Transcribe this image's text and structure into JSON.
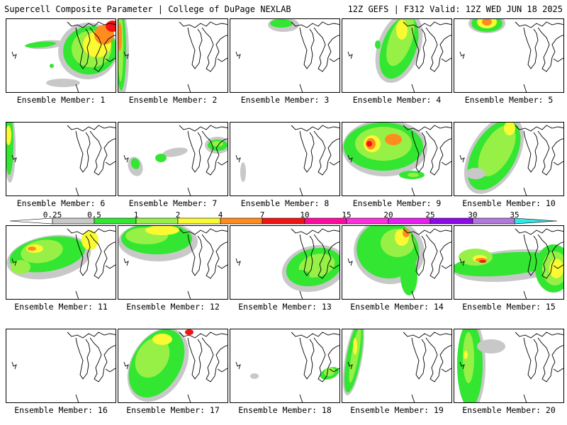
{
  "header": {
    "left": "Supercell Composite Parameter | College of DuPage NEXLAB",
    "right": "12Z GEFS | F312 Valid: 12Z WED JUN 18 2025"
  },
  "legend": {
    "labels": [
      "0.25",
      "0.5",
      "1",
      "2",
      "4",
      "7",
      "10",
      "15",
      "20",
      "25",
      "30",
      "35"
    ],
    "colors": [
      "#c8c8c8",
      "#32e632",
      "#96f046",
      "#fafa32",
      "#ff8c1e",
      "#f01414",
      "#ff0aa0",
      "#ff2ddc",
      "#e61ef0",
      "#8c0ae6",
      "#b478dc",
      "#32e6e6"
    ]
  },
  "panels": [
    {
      "label": "Ensemble Member: 1"
    },
    {
      "label": "Ensemble Member: 2"
    },
    {
      "label": "Ensemble Member: 3"
    },
    {
      "label": "Ensemble Member: 4"
    },
    {
      "label": "Ensemble Member: 5"
    },
    {
      "label": "Ensemble Member: 6"
    },
    {
      "label": "Ensemble Member: 7"
    },
    {
      "label": "Ensemble Member: 8"
    },
    {
      "label": "Ensemble Member: 9"
    },
    {
      "label": "Ensemble Member: 10"
    },
    {
      "label": "Ensemble Member: 11"
    },
    {
      "label": "Ensemble Member: 12"
    },
    {
      "label": "Ensemble Member: 13"
    },
    {
      "label": "Ensemble Member: 14"
    },
    {
      "label": "Ensemble Member: 15"
    },
    {
      "label": "Ensemble Member: 16"
    },
    {
      "label": "Ensemble Member: 17"
    },
    {
      "label": "Ensemble Member: 18"
    },
    {
      "label": "Ensemble Member: 19"
    },
    {
      "label": "Ensemble Member: 20"
    }
  ]
}
